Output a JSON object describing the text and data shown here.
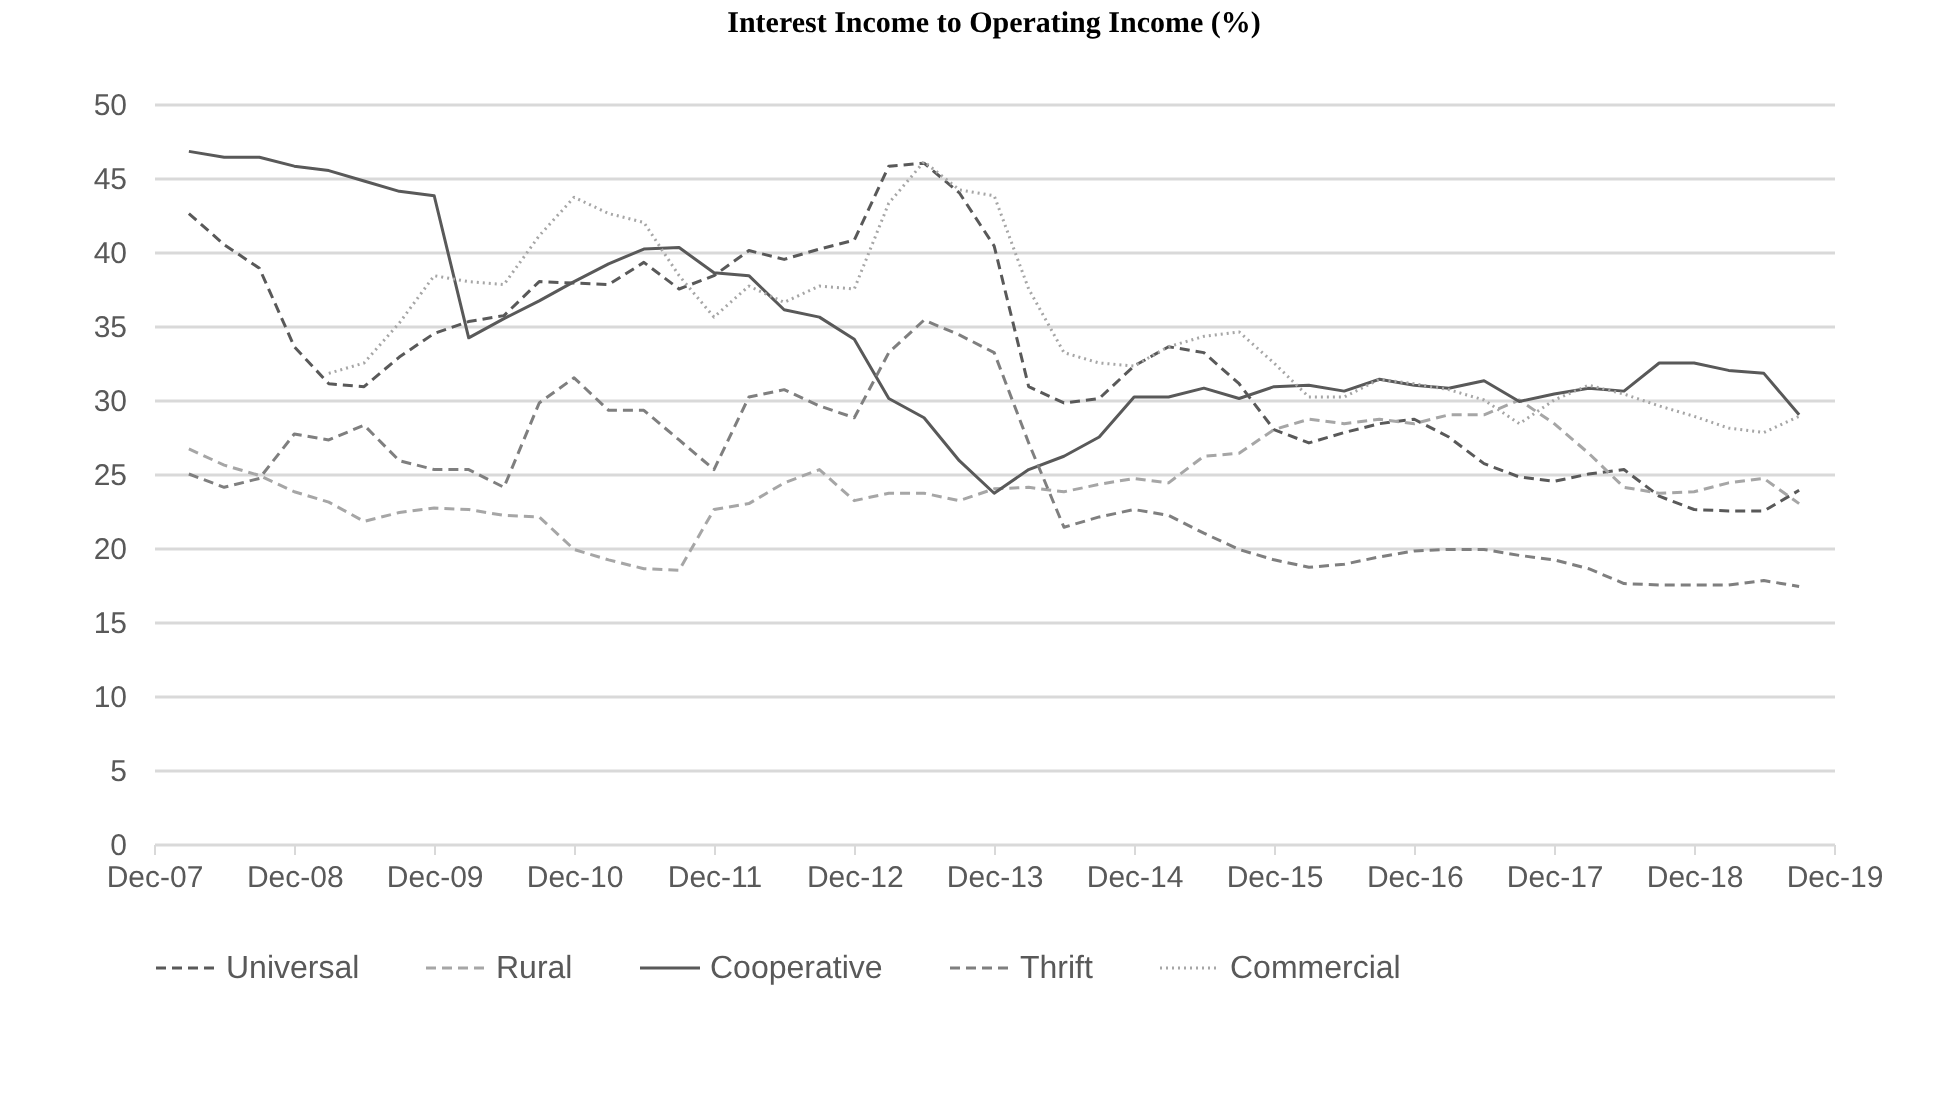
{
  "chart_data": {
    "type": "line",
    "title": "Interest Income to Operating Income (%)",
    "x": [
      "2008-03",
      "2008-06",
      "2008-09",
      "2008-12",
      "2009-03",
      "2009-06",
      "2009-09",
      "2009-12",
      "2010-03",
      "2010-06",
      "2010-09",
      "2010-12",
      "2011-03",
      "2011-06",
      "2011-09",
      "2011-12",
      "2012-03",
      "2012-06",
      "2012-09",
      "2012-12",
      "2013-03",
      "2013-06",
      "2013-09",
      "2013-12",
      "2014-03",
      "2014-06",
      "2014-09",
      "2014-12",
      "2015-03",
      "2015-06",
      "2015-09",
      "2015-12",
      "2016-03",
      "2016-06",
      "2016-09",
      "2016-12",
      "2017-03",
      "2017-06",
      "2017-09",
      "2017-12",
      "2018-03",
      "2018-06",
      "2018-09",
      "2018-12",
      "2019-03",
      "2019-06",
      "2019-09"
    ],
    "series": [
      {
        "name": "Universal",
        "color": "#595959",
        "line_style": "dashed",
        "values": [
          42.6,
          40.5,
          38.9,
          33.6,
          31.1,
          30.9,
          32.9,
          34.5,
          35.3,
          35.7,
          38.0,
          37.9,
          37.8,
          39.3,
          37.5,
          38.4,
          40.1,
          39.5,
          40.2,
          40.8,
          45.8,
          46.0,
          44.0,
          40.4,
          30.9,
          29.8,
          30.1,
          32.3,
          33.6,
          33.2,
          31.1,
          28.0,
          27.1,
          27.8,
          28.4,
          28.7,
          27.5,
          25.7,
          24.8,
          24.5,
          25.0,
          25.3,
          23.5,
          22.6,
          22.5,
          22.5,
          23.9
        ]
      },
      {
        "name": "Rural",
        "color": "#a6a6a6",
        "line_style": "dashed",
        "values": [
          26.7,
          25.6,
          24.9,
          23.8,
          23.1,
          21.8,
          22.4,
          22.7,
          22.6,
          22.2,
          22.1,
          19.9,
          19.2,
          18.6,
          18.5,
          22.6,
          23.0,
          24.4,
          25.3,
          23.2,
          23.7,
          23.7,
          23.2,
          24.0,
          24.1,
          23.8,
          24.3,
          24.7,
          24.4,
          26.2,
          26.4,
          28.0,
          28.7,
          28.4,
          28.7,
          28.4,
          29.0,
          29.0,
          30.0,
          28.4,
          26.4,
          24.1,
          23.7,
          23.8,
          24.4,
          24.7,
          23.0
        ]
      },
      {
        "name": "Cooperative",
        "color": "#595959",
        "line_style": "solid",
        "values": [
          46.8,
          46.4,
          46.4,
          45.8,
          45.5,
          44.8,
          44.1,
          43.8,
          34.2,
          35.5,
          36.7,
          38.0,
          39.2,
          40.2,
          40.3,
          38.6,
          38.4,
          36.1,
          35.6,
          34.1,
          30.1,
          28.8,
          25.9,
          23.7,
          25.3,
          26.2,
          27.5,
          30.2,
          30.2,
          30.8,
          30.1,
          30.9,
          31.0,
          30.6,
          31.4,
          31.0,
          30.8,
          31.3,
          29.9,
          30.4,
          30.8,
          30.6,
          32.5,
          32.5,
          32.0,
          31.8,
          29.0
        ]
      },
      {
        "name": "Thrift",
        "color": "#7f7f7f",
        "line_style": "dashed",
        "values": [
          25.0,
          24.1,
          24.7,
          27.7,
          27.3,
          28.3,
          25.9,
          25.3,
          25.3,
          24.1,
          29.8,
          31.5,
          29.3,
          29.3,
          27.3,
          25.3,
          30.2,
          30.7,
          29.6,
          28.8,
          33.2,
          35.4,
          34.4,
          33.2,
          27.1,
          21.4,
          22.1,
          22.6,
          22.2,
          21.0,
          19.9,
          19.2,
          18.7,
          18.9,
          19.4,
          19.8,
          19.9,
          19.9,
          19.5,
          19.2,
          18.6,
          17.6,
          17.5,
          17.5,
          17.5,
          17.8,
          17.4
        ]
      },
      {
        "name": "Commercial",
        "color": "#a6a6a6",
        "line_style": "dotted",
        "values": [
          null,
          null,
          null,
          null,
          31.8,
          32.5,
          35.2,
          38.4,
          38.0,
          37.8,
          41.1,
          43.7,
          42.6,
          42.0,
          38.4,
          35.6,
          37.7,
          36.6,
          37.7,
          37.5,
          43.3,
          46.1,
          44.2,
          43.8,
          37.5,
          33.2,
          32.5,
          32.3,
          33.6,
          34.3,
          34.6,
          32.5,
          30.2,
          30.2,
          31.4,
          31.1,
          30.7,
          30.0,
          28.4,
          30.0,
          31.0,
          30.4,
          29.6,
          28.9,
          28.1,
          27.8,
          28.9
        ]
      }
    ],
    "xlim": [
      "2007-12",
      "2019-12"
    ],
    "xticks": [
      {
        "value": "2007-12",
        "label": "Dec-07"
      },
      {
        "value": "2008-12",
        "label": "Dec-08"
      },
      {
        "value": "2009-12",
        "label": "Dec-09"
      },
      {
        "value": "2010-12",
        "label": "Dec-10"
      },
      {
        "value": "2011-12",
        "label": "Dec-11"
      },
      {
        "value": "2012-12",
        "label": "Dec-12"
      },
      {
        "value": "2013-12",
        "label": "Dec-13"
      },
      {
        "value": "2014-12",
        "label": "Dec-14"
      },
      {
        "value": "2015-12",
        "label": "Dec-15"
      },
      {
        "value": "2016-12",
        "label": "Dec-16"
      },
      {
        "value": "2017-12",
        "label": "Dec-17"
      },
      {
        "value": "2018-12",
        "label": "Dec-18"
      },
      {
        "value": "2019-12",
        "label": "Dec-19"
      }
    ],
    "ylim": [
      0,
      50
    ],
    "yticks": [
      0,
      5,
      10,
      15,
      20,
      25,
      30,
      35,
      40,
      45,
      50
    ],
    "grid": "y",
    "legend": "bottom"
  }
}
